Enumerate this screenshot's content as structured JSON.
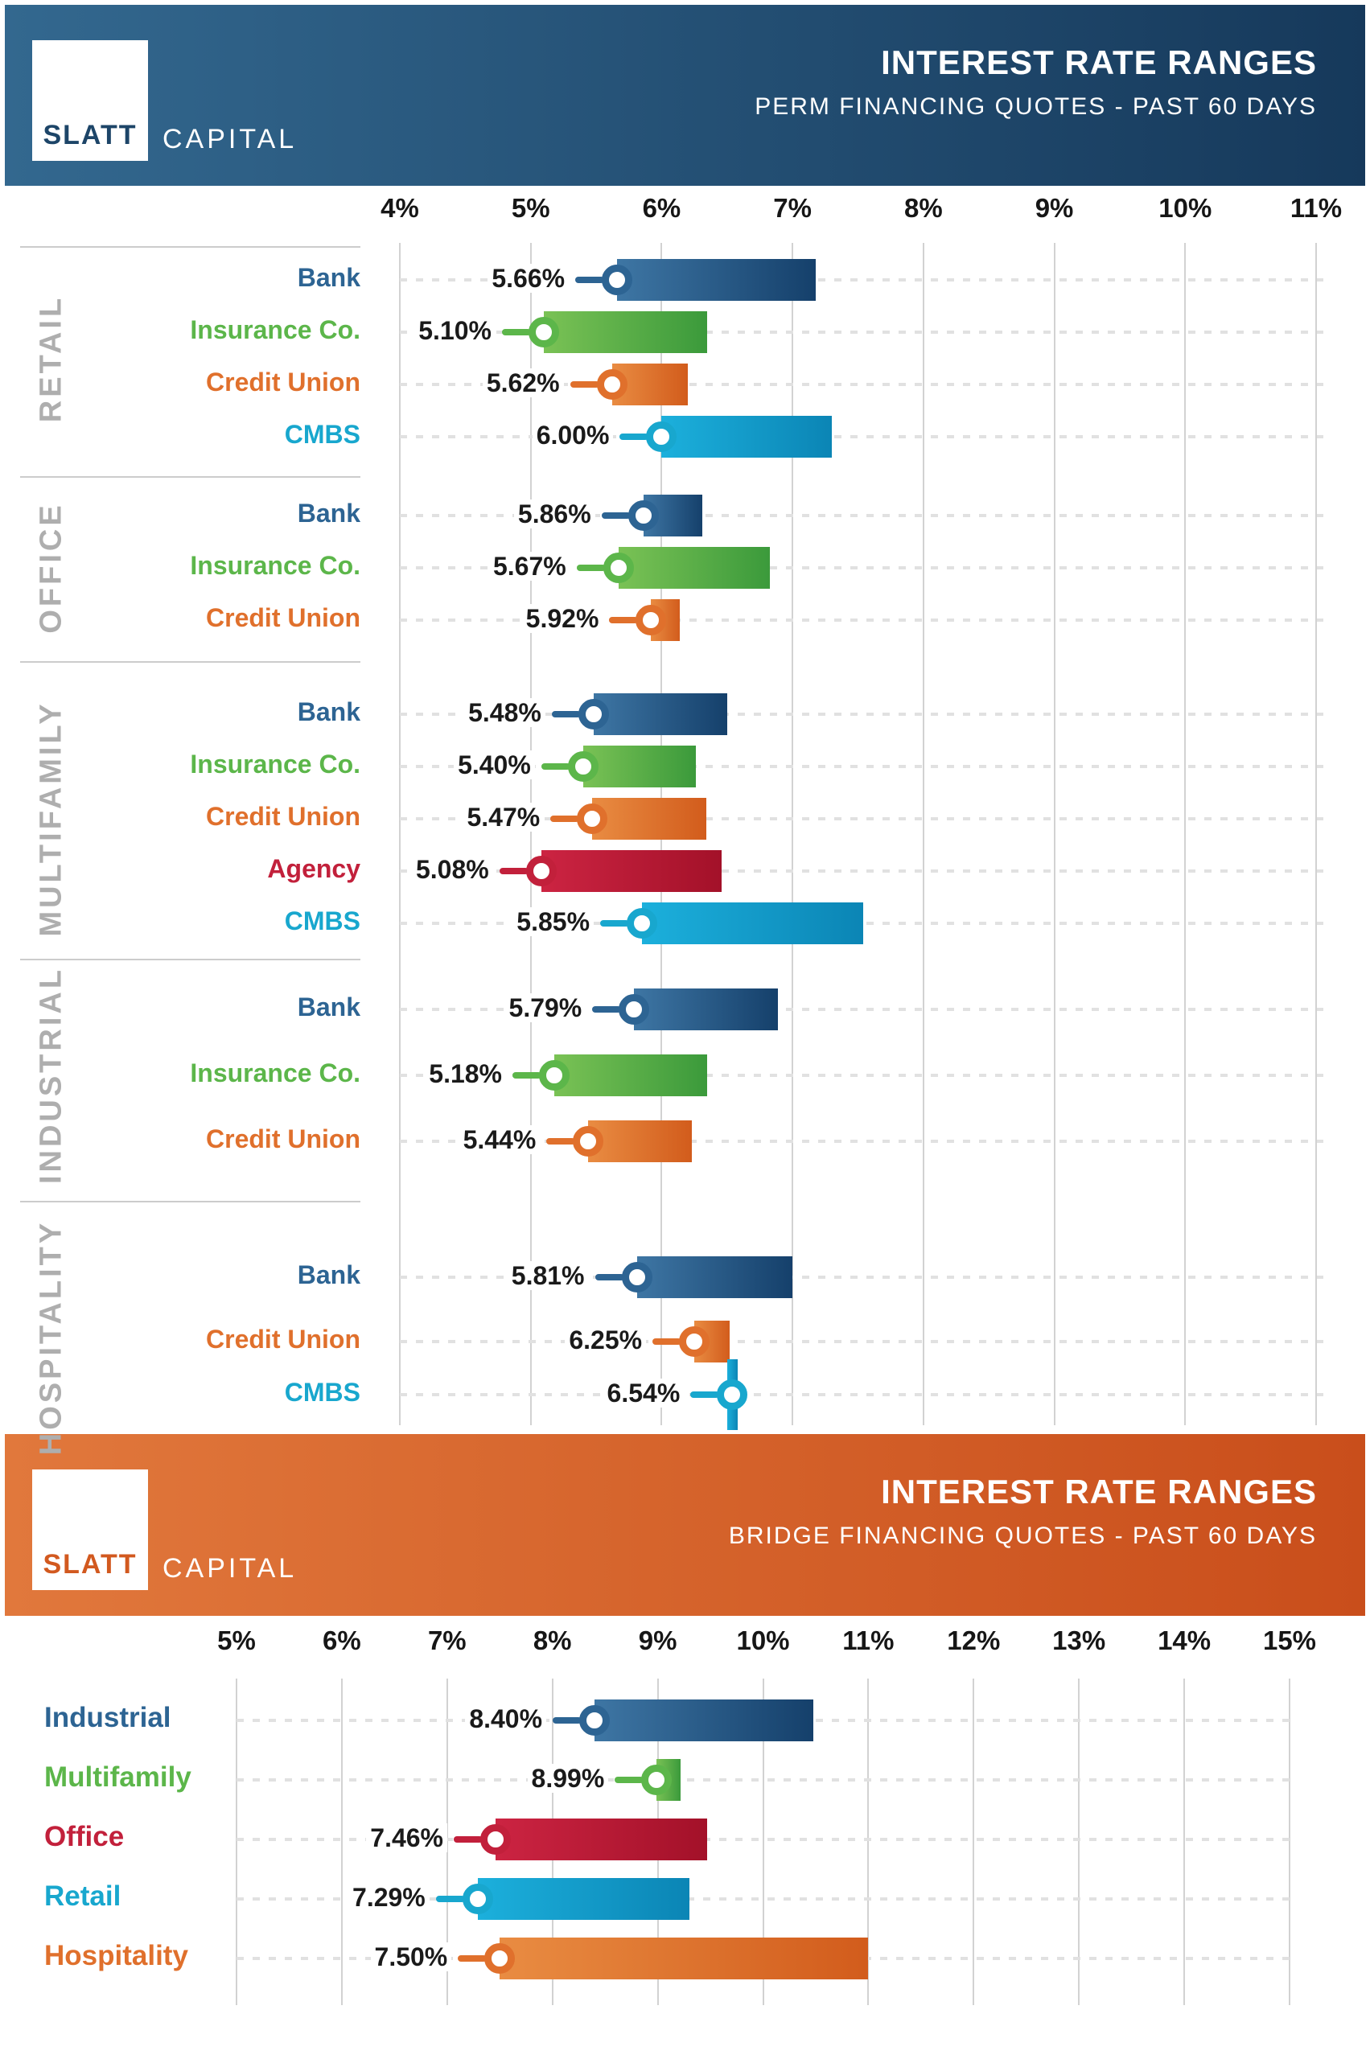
{
  "brand": {
    "primary": "SLATT",
    "secondary": "CAPITAL"
  },
  "colors": {
    "header_perm": [
      "#33688f",
      "#16395b"
    ],
    "header_bridge": [
      "#e1783c",
      "#c94e1b"
    ],
    "slatt_perm": "#1d4568",
    "slatt_bridge": "#d2591f",
    "section_label": "#aeaeae",
    "gridline": "#d2d2d2",
    "leader_dash": "#e1e1e1",
    "value_text": "#1a1a1a",
    "series": {
      "blue": {
        "label": "#2d6493",
        "from": "#3e76a4",
        "to": "#15406b"
      },
      "green": {
        "label": "#5cb64a",
        "from": "#7ac255",
        "to": "#3b9a3b"
      },
      "orange": {
        "label": "#e0702c",
        "from": "#e98c42",
        "to": "#d25c1c"
      },
      "red": {
        "label": "#c2203b",
        "from": "#cc2442",
        "to": "#a31129"
      },
      "cyan": {
        "label": "#18a7ce",
        "from": "#1cb0dc",
        "to": "#0b85b5"
      }
    }
  },
  "chart_data": [
    {
      "type": "bar",
      "subtype": "horizontal_range_bar",
      "title": "INTEREST RATE RANGES",
      "subtitle": "PERM FINANCING QUOTES - PAST 60 DAYS",
      "axis": {
        "min": 4,
        "max": 11,
        "step": 1,
        "unit": "%",
        "tick_labels": [
          "4%",
          "5%",
          "6%",
          "7%",
          "8%",
          "9%",
          "10%",
          "11%"
        ],
        "grid": true,
        "leader_lines": true
      },
      "sections": [
        {
          "name": "RETAIL",
          "rows": [
            {
              "label": "Bank",
              "color": "blue",
              "min": 5.66,
              "max": 7.18,
              "min_label": "5.66%"
            },
            {
              "label": "Insurance Co.",
              "color": "green",
              "min": 5.1,
              "max": 6.35,
              "min_label": "5.10%"
            },
            {
              "label": "Credit Union",
              "color": "orange",
              "min": 5.62,
              "max": 6.2,
              "min_label": "5.62%"
            },
            {
              "label": "CMBS",
              "color": "cyan",
              "min": 6.0,
              "max": 7.3,
              "min_label": "6.00%"
            }
          ]
        },
        {
          "name": "OFFICE",
          "rows": [
            {
              "label": "Bank",
              "color": "blue",
              "min": 5.86,
              "max": 6.31,
              "min_label": "5.86%"
            },
            {
              "label": "Insurance Co.",
              "color": "green",
              "min": 5.67,
              "max": 6.83,
              "min_label": "5.67%"
            },
            {
              "label": "Credit Union",
              "color": "orange",
              "min": 5.92,
              "max": 6.14,
              "min_label": "5.92%"
            }
          ]
        },
        {
          "name": "MULTIFAMILY",
          "rows": [
            {
              "label": "Bank",
              "color": "blue",
              "min": 5.48,
              "max": 6.5,
              "min_label": "5.48%"
            },
            {
              "label": "Insurance Co.",
              "color": "green",
              "min": 5.4,
              "max": 6.26,
              "min_label": "5.40%"
            },
            {
              "label": "Credit Union",
              "color": "orange",
              "min": 5.47,
              "max": 6.34,
              "min_label": "5.47%"
            },
            {
              "label": "Agency",
              "color": "red",
              "min": 5.08,
              "max": 6.46,
              "min_label": "5.08%"
            },
            {
              "label": "CMBS",
              "color": "cyan",
              "min": 5.85,
              "max": 7.54,
              "min_label": "5.85%"
            }
          ]
        },
        {
          "name": "INDUSTRIAL",
          "rows": [
            {
              "label": "Bank",
              "color": "blue",
              "min": 5.79,
              "max": 6.89,
              "min_label": "5.79%"
            },
            {
              "label": "Insurance Co.",
              "color": "green",
              "min": 5.18,
              "max": 6.35,
              "min_label": "5.18%"
            },
            {
              "label": "Credit Union",
              "color": "orange",
              "min": 5.44,
              "max": 6.23,
              "min_label": "5.44%"
            }
          ]
        },
        {
          "name": "HOSPITALITY",
          "rows": [
            {
              "label": "Bank",
              "color": "blue",
              "min": 5.81,
              "max": 7.0,
              "min_label": "5.81%"
            },
            {
              "label": "Credit Union",
              "color": "orange",
              "min": 6.25,
              "max": 6.52,
              "min_label": "6.25%"
            },
            {
              "label": "CMBS",
              "color": "cyan",
              "min": 6.54,
              "max": 6.54,
              "min_label": "6.54%",
              "style": "point"
            }
          ]
        }
      ]
    },
    {
      "type": "bar",
      "subtype": "horizontal_range_bar",
      "title": "INTEREST RATE RANGES",
      "subtitle": "BRIDGE FINANCING QUOTES - PAST 60 DAYS",
      "axis": {
        "min": 5,
        "max": 15,
        "step": 1,
        "unit": "%",
        "tick_labels": [
          "5%",
          "6%",
          "7%",
          "8%",
          "9%",
          "10%",
          "11%",
          "12%",
          "13%",
          "14%",
          "15%"
        ],
        "grid": true,
        "leader_lines": true
      },
      "sections": [
        {
          "name": "",
          "rows": [
            {
              "label": "Industrial",
              "color": "blue",
              "min": 8.4,
              "max": 10.48,
              "min_label": "8.40%"
            },
            {
              "label": "Multifamily",
              "color": "green",
              "min": 8.99,
              "max": 9.22,
              "min_label": "8.99%"
            },
            {
              "label": "Office",
              "color": "red",
              "min": 7.46,
              "max": 9.47,
              "min_label": "7.46%"
            },
            {
              "label": "Retail",
              "color": "cyan",
              "min": 7.29,
              "max": 9.3,
              "min_label": "7.29%"
            },
            {
              "label": "Hospitality",
              "color": "orange",
              "min": 7.5,
              "max": 11.0,
              "min_label": "7.50%"
            }
          ]
        }
      ]
    }
  ]
}
